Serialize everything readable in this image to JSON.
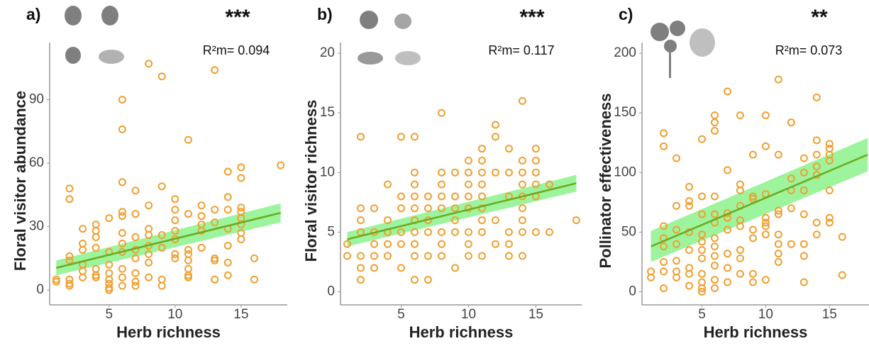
{
  "chart_data": [
    {
      "type": "scatter",
      "panel_label": "a)",
      "significance": "***",
      "annotation": "R²m= 0.094",
      "y_label": "Floral visitor abundance",
      "x_label": "Herb richness",
      "xlim": [
        0.5,
        18.5
      ],
      "ylim": [
        -7,
        117
      ],
      "xticks": [
        5,
        10,
        15
      ],
      "yticks": [
        0,
        30,
        60,
        90
      ],
      "points": {
        "color": "#f0a030",
        "x": [
          1,
          1,
          2,
          2,
          2,
          2,
          2,
          2,
          2,
          3,
          3,
          3,
          3,
          3,
          3,
          4,
          4,
          4,
          4,
          4,
          4,
          4,
          5,
          5,
          5,
          5,
          5,
          5,
          5,
          5,
          6,
          6,
          6,
          6,
          6,
          6,
          6,
          6,
          6,
          6,
          6,
          7,
          7,
          7,
          7,
          7,
          7,
          7,
          7,
          8,
          8,
          8,
          8,
          8,
          8,
          8,
          8,
          9,
          9,
          9,
          9,
          9,
          9,
          10,
          10,
          10,
          10,
          10,
          10,
          10,
          11,
          11,
          11,
          11,
          11,
          11,
          11,
          11,
          12,
          12,
          12,
          12,
          12,
          13,
          13,
          13,
          13,
          13,
          13,
          14,
          14,
          14,
          14,
          14,
          14,
          14,
          15,
          15,
          15,
          15,
          15,
          15,
          15,
          15,
          16,
          16,
          18
        ],
        "values": [
          4,
          5,
          48,
          43,
          16,
          14,
          5,
          3,
          2,
          29,
          22,
          19,
          12,
          9,
          6,
          31,
          28,
          25,
          20,
          10,
          7,
          6,
          34,
          18,
          12,
          8,
          5,
          3,
          1,
          0,
          90,
          76,
          51,
          37,
          35,
          27,
          22,
          18,
          10,
          6,
          2,
          47,
          36,
          25,
          19,
          15,
          8,
          4,
          2,
          107,
          40,
          29,
          26,
          21,
          17,
          13,
          6,
          101,
          49,
          26,
          20,
          5,
          2,
          43,
          38,
          33,
          28,
          24,
          17,
          15,
          71,
          36,
          19,
          17,
          14,
          10,
          7,
          6,
          40,
          35,
          31,
          28,
          20,
          104,
          38,
          32,
          15,
          14,
          5,
          56,
          44,
          38,
          29,
          21,
          13,
          7,
          58,
          53,
          39,
          37,
          34,
          31,
          27,
          24,
          15,
          5,
          59
        ]
      },
      "fit": {
        "color": "#6aaa1e",
        "band_color": "#8cf28c",
        "x": [
          1,
          18
        ],
        "values": [
          10.5,
          36.5
        ],
        "lower": [
          7,
          32
        ],
        "upper": [
          14,
          41
        ]
      }
    },
    {
      "type": "scatter",
      "panel_label": "b)",
      "significance": "***",
      "annotation": "R²m= 0.117",
      "y_label": "Floral visitor richness",
      "x_label": "Herb richness",
      "xlim": [
        0.5,
        18.4
      ],
      "ylim": [
        -1.1,
        20.9
      ],
      "xticks": [
        5,
        10,
        15
      ],
      "yticks": [
        0,
        5,
        10,
        15,
        20
      ],
      "points": {
        "color": "#f0a030",
        "x": [
          1,
          1,
          2,
          2,
          2,
          2,
          2,
          2,
          2,
          3,
          3,
          3,
          3,
          3,
          4,
          4,
          4,
          4,
          4,
          5,
          5,
          5,
          5,
          5,
          5,
          6,
          6,
          6,
          6,
          6,
          6,
          6,
          6,
          6,
          6,
          7,
          7,
          7,
          7,
          7,
          7,
          8,
          8,
          8,
          8,
          8,
          8,
          8,
          8,
          9,
          9,
          9,
          9,
          9,
          9,
          10,
          10,
          10,
          10,
          10,
          10,
          10,
          10,
          11,
          11,
          11,
          11,
          11,
          11,
          11,
          11,
          11,
          12,
          12,
          12,
          12,
          12,
          13,
          13,
          13,
          13,
          13,
          13,
          14,
          14,
          14,
          14,
          14,
          14,
          14,
          14,
          14,
          15,
          15,
          15,
          15,
          15,
          15,
          16,
          16,
          18
        ],
        "values": [
          4,
          3,
          13,
          7,
          6,
          5,
          3,
          2,
          1,
          7,
          5,
          4,
          3,
          2,
          9,
          6,
          5,
          4,
          3,
          13,
          8,
          7,
          5,
          4,
          2,
          13,
          10,
          9,
          8,
          7,
          6,
          5,
          4,
          3,
          1,
          8,
          7,
          6,
          5,
          3,
          1,
          15,
          10,
          9,
          8,
          7,
          5,
          4,
          3,
          10,
          8,
          7,
          6,
          5,
          2,
          11,
          10,
          9,
          8,
          7,
          5,
          4,
          3,
          12,
          11,
          10,
          9,
          8,
          7,
          6,
          5,
          3,
          14,
          13,
          10,
          6,
          4,
          12,
          10,
          8,
          5,
          4,
          3,
          16,
          11,
          10,
          9,
          8,
          7,
          6,
          5,
          3,
          12,
          11,
          10,
          9,
          8,
          5,
          9,
          5,
          6
        ]
      },
      "fit": {
        "color": "#6aaa1e",
        "band_color": "#8cf28c",
        "x": [
          1,
          18
        ],
        "values": [
          4.4,
          9.1
        ],
        "lower": [
          3.8,
          8.4
        ],
        "upper": [
          5.0,
          9.8
        ]
      }
    },
    {
      "type": "scatter",
      "panel_label": "c)",
      "significance": "**",
      "annotation": "R²m= 0.073",
      "y_label": "Pollinator effectiveness",
      "x_label": "Herb richness",
      "xlim": [
        0.3,
        18.1
      ],
      "ylim": [
        -11,
        209
      ],
      "xticks": [
        5,
        10,
        15
      ],
      "yticks": [
        0,
        50,
        100,
        150,
        200
      ],
      "points": {
        "color": "#f0a030",
        "x": [
          1,
          1,
          2,
          2,
          2,
          2,
          2,
          2,
          2,
          2,
          3,
          3,
          3,
          3,
          3,
          3,
          3,
          4,
          4,
          4,
          4,
          4,
          4,
          4,
          4,
          5,
          5,
          5,
          5,
          5,
          5,
          5,
          5,
          5,
          5,
          5,
          6,
          6,
          6,
          6,
          6,
          6,
          6,
          6,
          6,
          6,
          6,
          6,
          7,
          7,
          7,
          7,
          7,
          7,
          7,
          7,
          8,
          8,
          8,
          8,
          8,
          8,
          8,
          8,
          8,
          9,
          9,
          9,
          9,
          9,
          9,
          9,
          10,
          10,
          10,
          10,
          10,
          10,
          10,
          10,
          11,
          11,
          11,
          11,
          11,
          11,
          11,
          11,
          12,
          12,
          12,
          12,
          12,
          13,
          13,
          13,
          13,
          13,
          13,
          13,
          14,
          14,
          14,
          14,
          14,
          14,
          14,
          15,
          15,
          15,
          15,
          15,
          15,
          15,
          16,
          16
        ],
        "values": [
          17,
          12,
          133,
          122,
          55,
          45,
          38,
          25,
          17,
          3,
          112,
          72,
          52,
          40,
          26,
          17,
          12,
          88,
          76,
          72,
          50,
          35,
          20,
          15,
          5,
          128,
          80,
          65,
          48,
          42,
          35,
          28,
          15,
          8,
          3,
          0,
          148,
          142,
          135,
          80,
          65,
          58,
          45,
          38,
          30,
          22,
          10,
          3,
          168,
          102,
          66,
          62,
          52,
          32,
          20,
          8,
          148,
          90,
          85,
          72,
          60,
          55,
          35,
          28,
          15,
          115,
          80,
          78,
          52,
          45,
          15,
          8,
          148,
          122,
          82,
          62,
          58,
          55,
          48,
          10,
          178,
          115,
          68,
          65,
          48,
          40,
          32,
          25,
          142,
          95,
          85,
          70,
          40,
          112,
          100,
          85,
          65,
          40,
          30,
          8,
          163,
          127,
          115,
          105,
          98,
          58,
          48,
          124,
          120,
          115,
          110,
          85,
          62,
          58,
          46,
          14
        ]
      },
      "fit": {
        "color": "#6aaa1e",
        "band_color": "#8cf28c",
        "x": [
          1,
          18
        ],
        "values": [
          38,
          115
        ],
        "lower": [
          25,
          101
        ],
        "upper": [
          51,
          129
        ]
      }
    }
  ]
}
